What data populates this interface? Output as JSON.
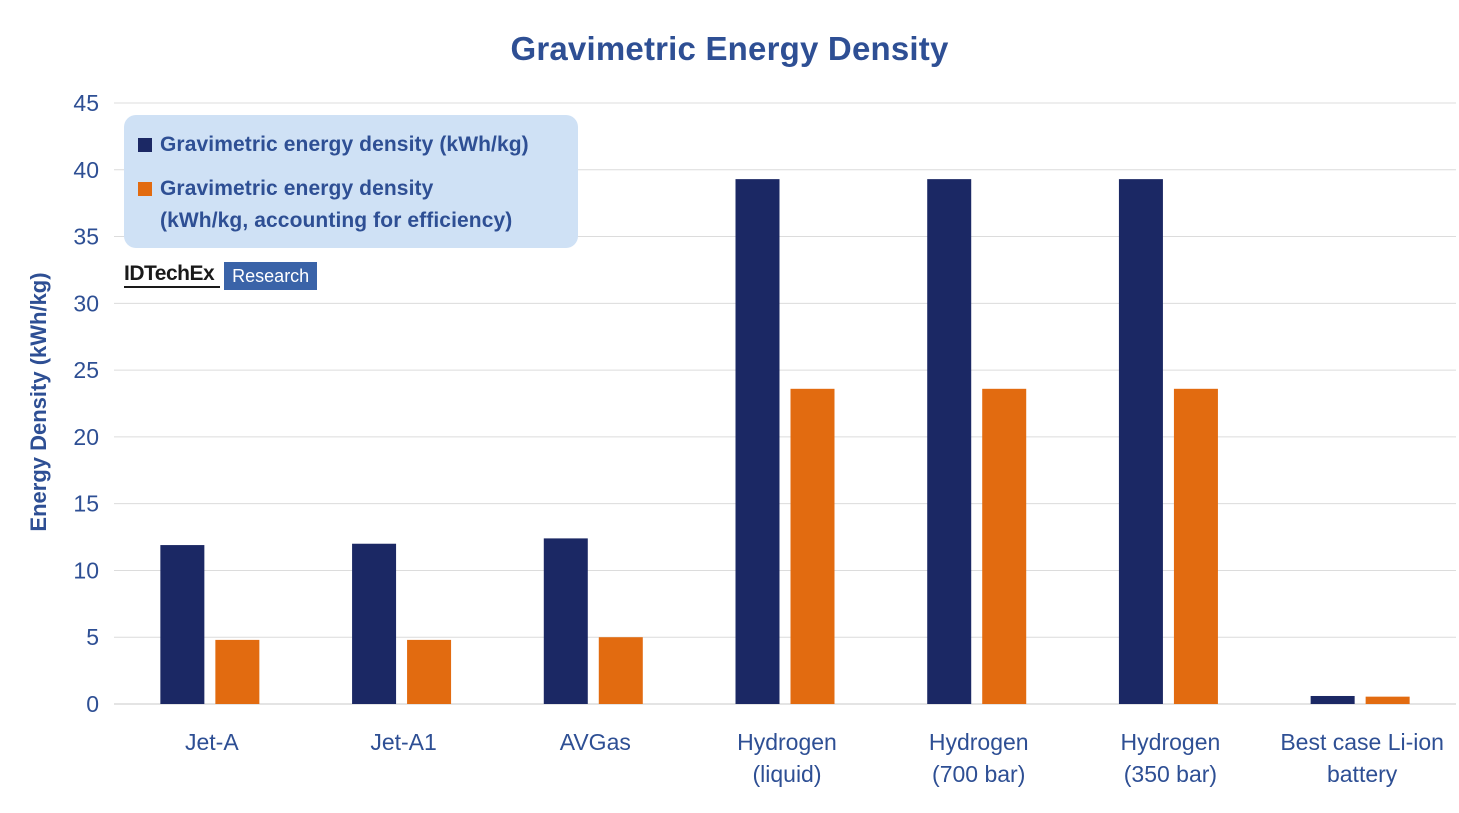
{
  "chart_data": {
    "type": "bar",
    "title": "Gravimetric Energy Density",
    "ylabel": "Energy Density (kWh/kg)",
    "xlabel": "",
    "ylim": [
      0,
      45
    ],
    "yticks": [
      0,
      5,
      10,
      15,
      20,
      25,
      30,
      35,
      40,
      45
    ],
    "grid": true,
    "legend_position": "top-left",
    "categories": [
      "Jet-A",
      "Jet-A1",
      "AVGas",
      "Hydrogen\n(liquid)",
      "Hydrogen\n(700 bar)",
      "Hydrogen\n(350 bar)",
      "Best case Li-ion\nbattery"
    ],
    "series": [
      {
        "name": "Gravimetric energy density (kWh/kg)",
        "color": "#1b2864",
        "values": [
          11.9,
          12.0,
          12.4,
          39.3,
          39.3,
          39.3,
          0.6
        ]
      },
      {
        "name": "Gravimetric energy density\n(kWh/kg, accounting for efficiency)",
        "color": "#e26b10",
        "values": [
          4.8,
          4.8,
          5.0,
          23.6,
          23.6,
          23.6,
          0.55
        ]
      }
    ]
  },
  "branding": {
    "name": "IDTechEx",
    "tag": "Research"
  },
  "colors": {
    "text": "#2e4f94",
    "grid": "#dcdcdc",
    "legend_bg": "#cfe1f5"
  }
}
